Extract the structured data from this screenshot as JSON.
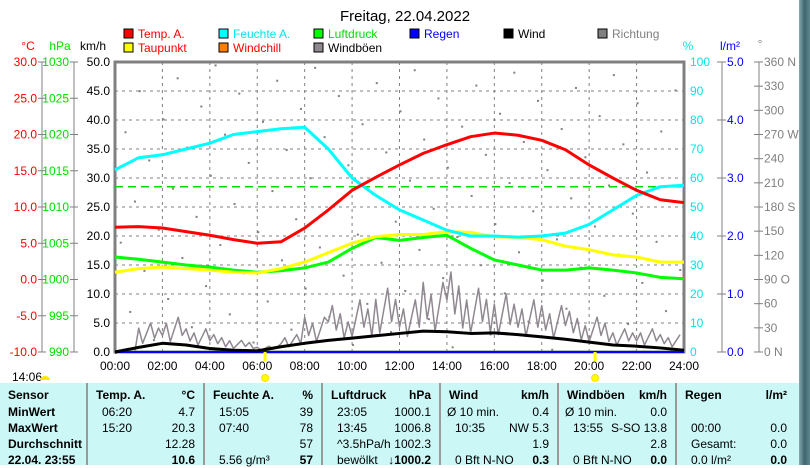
{
  "title": "Freitag, 22.04.2022",
  "legend": [
    {
      "label": "Temp. A.",
      "color": "#ff0000",
      "text_color": "#ff0000"
    },
    {
      "label": "Feuchte A.",
      "color": "#00ffff",
      "text_color": "#00e5e5"
    },
    {
      "label": "Luftdruck",
      "color": "#00ff00",
      "text_color": "#00dd00"
    },
    {
      "label": "Regen",
      "color": "#0000ff",
      "text_color": "#0000ff"
    },
    {
      "label": "Wind",
      "color": "#000000",
      "text_color": "#000000"
    },
    {
      "label": "Richtung",
      "color": "#808080",
      "text_color": "#808080"
    },
    {
      "label": "Taupunkt",
      "color": "#ffff00",
      "text_color": "#ff0000"
    },
    {
      "label": "Windchill",
      "color": "#ff8000",
      "text_color": "#ff0000"
    },
    {
      "label": "Windböen",
      "color": "#908890",
      "text_color": "#000000"
    }
  ],
  "axes": {
    "temp_unit": "°C",
    "temp_ticks": [
      "30.0",
      "25.0",
      "20.0",
      "15.0",
      "10.0",
      "5.0",
      "0.0",
      "-5.0",
      "-10.0"
    ],
    "press_unit": "hPa",
    "press_ticks": [
      "1030",
      "1025",
      "1020",
      "1015",
      "1010",
      "1005",
      "1000",
      "995",
      "990"
    ],
    "wind_unit": "km/h",
    "wind_ticks": [
      "50.0",
      "45.0",
      "40.0",
      "35.0",
      "30.0",
      "25.0",
      "20.0",
      "15.0",
      "10.0",
      "5.0",
      "0.0"
    ],
    "hum_unit": "%",
    "hum_ticks": [
      "100",
      "90",
      "80",
      "70",
      "60",
      "50",
      "40",
      "30",
      "20",
      "10",
      "0"
    ],
    "rain_unit": "l/m²",
    "rain_ticks": [
      "5.0",
      "4.0",
      "3.0",
      "2.0",
      "1.0",
      "0.0"
    ],
    "dir_unit": "°",
    "dir_ticks": [
      "360 N",
      "330",
      "300",
      "270 W",
      "240",
      "210",
      "180 S",
      "150",
      "120",
      "90  O",
      "60",
      "30",
      "0   N"
    ],
    "time_ticks": [
      "00:00",
      "02:00",
      "04:00",
      "06:00",
      "08:00",
      "10:00",
      "12:00",
      "14:00",
      "16:00",
      "18:00",
      "20:00",
      "22:00",
      "24:00"
    ]
  },
  "status_time": "14:06",
  "chart_data": {
    "type": "line",
    "x_hours": [
      0,
      1,
      2,
      3,
      4,
      5,
      6,
      7,
      8,
      9,
      10,
      11,
      12,
      13,
      14,
      15,
      16,
      17,
      18,
      19,
      20,
      21,
      22,
      23,
      24
    ],
    "xlim": [
      0,
      24
    ],
    "series": [
      {
        "name": "Temp. A.",
        "unit": "°C",
        "ylim": [
          -10,
          30
        ],
        "values": [
          7.2,
          7.3,
          7.1,
          6.6,
          6.1,
          5.5,
          5.0,
          5.2,
          7.1,
          9.6,
          12.3,
          14.1,
          15.8,
          17.4,
          18.6,
          19.7,
          20.2,
          19.9,
          19.2,
          17.9,
          15.8,
          14.0,
          12.3,
          11.0,
          10.6
        ]
      },
      {
        "name": "Taupunkt",
        "unit": "°C",
        "ylim": [
          -10,
          30
        ],
        "values": [
          1.0,
          1.5,
          1.7,
          1.5,
          1.3,
          1.0,
          0.9,
          1.5,
          2.4,
          3.7,
          5.0,
          5.9,
          6.2,
          6.2,
          6.6,
          6.5,
          5.9,
          5.8,
          5.5,
          4.6,
          4.1,
          3.4,
          3.1,
          2.4,
          2.4
        ]
      },
      {
        "name": "Feuchte A.",
        "unit": "%",
        "ylim": [
          0,
          100
        ],
        "values": [
          62.8,
          67,
          68,
          70,
          72,
          75,
          76,
          77,
          77.5,
          70,
          60,
          54,
          49,
          45.5,
          42,
          40,
          40,
          39.6,
          40,
          41,
          44,
          49,
          54,
          57,
          57.5
        ]
      },
      {
        "name": "Luftdruck",
        "unit": "hPa",
        "ylim": [
          990,
          1030
        ],
        "values": [
          1003.1,
          1002.8,
          1002.4,
          1002.0,
          1001.7,
          1001.3,
          1001.0,
          1001.2,
          1001.6,
          1002.4,
          1004.3,
          1005.8,
          1005.4,
          1005.8,
          1006.1,
          1004.3,
          1002.7,
          1002.0,
          1001.3,
          1001.3,
          1001.6,
          1001.3,
          1000.9,
          1000.3,
          1000.1
        ]
      },
      {
        "name": "Wind",
        "unit": "km/h",
        "ylim": [
          0,
          50
        ],
        "values": [
          0,
          0.8,
          1.5,
          1.2,
          0.6,
          0.3,
          0.2,
          0.9,
          1.5,
          2.0,
          2.4,
          2.8,
          3.2,
          3.6,
          3.5,
          3.2,
          3.3,
          3.0,
          2.6,
          2.2,
          1.7,
          1.2,
          1.0,
          0.7,
          0.3
        ]
      },
      {
        "name": "Windböen",
        "unit": "km/h",
        "ylim": [
          0,
          50
        ],
        "values": [
          0,
          5,
          6,
          4,
          3,
          2,
          1,
          3,
          6,
          8,
          9,
          11,
          9,
          12,
          13.8,
          11,
          10,
          9,
          8,
          7,
          6,
          4,
          4,
          3,
          1
        ]
      },
      {
        "name": "Regen",
        "unit": "l/m²",
        "ylim": [
          0,
          5
        ],
        "values": [
          0,
          0,
          0,
          0,
          0,
          0,
          0,
          0,
          0,
          0,
          0,
          0,
          0,
          0,
          0,
          0,
          0,
          0,
          0,
          0,
          0,
          0,
          0,
          0,
          0
        ]
      }
    ],
    "reference_line": {
      "value_pct": 57,
      "color": "#00dd00"
    },
    "sunrise_hour": 6.33,
    "sunset_hour": 20.25
  },
  "table": {
    "headers": [
      [
        "Sensor",
        ""
      ],
      [
        "Temp. A.",
        "°C"
      ],
      [
        "Feuchte A.",
        "%"
      ],
      [
        "Luftdruck",
        "hPa"
      ],
      [
        "Wind",
        "km/h"
      ],
      [
        "Windböen",
        "km/h"
      ],
      [
        "Regen",
        "l/m²"
      ]
    ],
    "rows": [
      {
        "label": "MinWert",
        "cells": [
          [
            "06:20",
            "4.7"
          ],
          [
            "15:05",
            "39"
          ],
          [
            "23:05",
            "1000.1"
          ],
          [
            "Ø 10 min.",
            "0.4"
          ],
          [
            "Ø 10 min.",
            "0.0"
          ],
          [
            "",
            ""
          ]
        ]
      },
      {
        "label": "MaxWert",
        "cells": [
          [
            "15:20",
            "20.3"
          ],
          [
            "07:40",
            "78"
          ],
          [
            "13:45",
            "1006.8"
          ],
          [
            "10:35",
            "NW 5.3"
          ],
          [
            "13:55",
            "S-SO 13.8"
          ],
          [
            "00:00",
            "0.0"
          ]
        ]
      },
      {
        "label": "Durchschnitt",
        "cells": [
          [
            "",
            "12.28"
          ],
          [
            "",
            "57"
          ],
          [
            "^3.5hPa/h",
            "1002.3"
          ],
          [
            "",
            "1.9"
          ],
          [
            "",
            "2.8"
          ],
          [
            "Gesamt:",
            "0.0"
          ]
        ]
      },
      {
        "label": "22.04. 23:55",
        "cells": [
          [
            "",
            "10.6"
          ],
          [
            "5.56 g/m³",
            "57"
          ],
          [
            "bewölkt",
            "↓1000.2"
          ],
          [
            "0 Bft N-NO",
            "0.3"
          ],
          [
            "0 Bft N-NO",
            "0.0"
          ],
          [
            "0.0 l/m²",
            "0.0"
          ]
        ]
      }
    ]
  }
}
